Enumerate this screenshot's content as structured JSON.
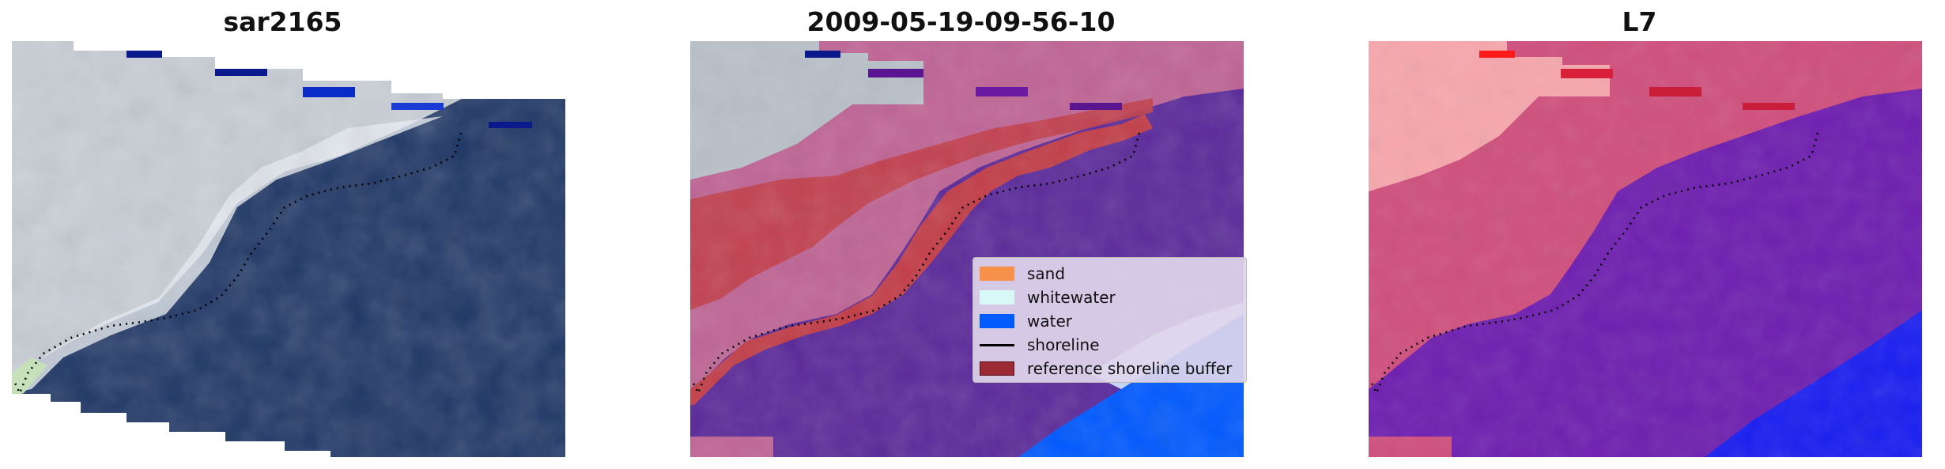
{
  "panels": [
    {
      "title": "sar2165"
    },
    {
      "title": "2009-05-19-09-56-10"
    },
    {
      "title": "L7"
    }
  ],
  "legend": {
    "items": [
      {
        "label": "sand",
        "color": "#f7914a",
        "kind": "patch"
      },
      {
        "label": "whitewater",
        "color": "#d8f7f7",
        "kind": "patch"
      },
      {
        "label": "water",
        "color": "#005cff",
        "kind": "patch"
      },
      {
        "label": "shoreline",
        "color": "#000000",
        "kind": "line"
      },
      {
        "label": "reference shoreline buffer",
        "color": "#9b2a35",
        "kind": "patch"
      }
    ]
  },
  "colors": {
    "rgb_land": "#c9ced6",
    "rgb_sea": "#1f3766",
    "overlay_land": "#bf6495",
    "overlay_sea": "#5b2a9a",
    "overlay_buffer": "#c23d48",
    "overlay_water": "#0059ff",
    "index_land": "#cf4f7c",
    "index_sea": "#6f1fb0",
    "index_pale": "#f6a7ad",
    "index_water": "#1a1ff0"
  }
}
